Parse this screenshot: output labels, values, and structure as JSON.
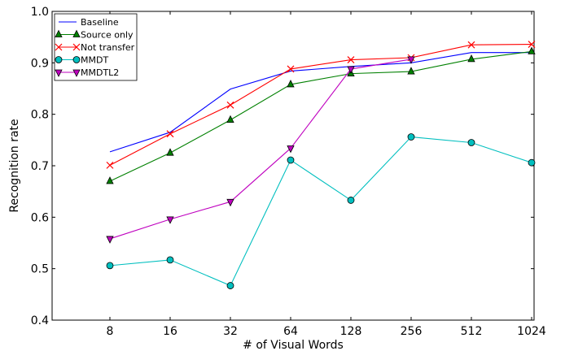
{
  "chart_data": {
    "type": "line",
    "xlabel": "# of Visual Words",
    "ylabel": "Recognition rate",
    "categories": [
      "8",
      "16",
      "32",
      "64",
      "128",
      "256",
      "512",
      "1024"
    ],
    "ylim": [
      0.4,
      1.0
    ],
    "yticks": [
      "0.4",
      "0.5",
      "0.6",
      "0.7",
      "0.8",
      "0.9",
      "1.0"
    ],
    "grid": false,
    "legend_position": "top-left",
    "series": [
      {
        "name": "Baseline",
        "color": "#0000ff",
        "marker": "none",
        "values": [
          0.727,
          0.765,
          0.849,
          0.884,
          0.893,
          0.9,
          0.92,
          0.92
        ]
      },
      {
        "name": "Source only",
        "color": "#008000",
        "marker": "triangle-up",
        "values": [
          0.67,
          0.725,
          0.789,
          0.858,
          0.879,
          0.883,
          0.907,
          0.922
        ]
      },
      {
        "name": "Not transfer",
        "color": "#ff0000",
        "marker": "x",
        "values": [
          0.701,
          0.762,
          0.818,
          0.888,
          0.906,
          0.91,
          0.935,
          0.936
        ]
      },
      {
        "name": "MMDT",
        "color": "#00bfbf",
        "marker": "circle",
        "values": [
          0.506,
          0.517,
          0.467,
          0.711,
          0.633,
          0.756,
          0.745,
          0.706
        ]
      },
      {
        "name": "MMDTL2",
        "color": "#bf00bf",
        "marker": "triangle-down",
        "values": [
          0.558,
          0.596,
          0.63,
          0.734,
          0.888,
          0.907,
          null,
          null
        ]
      }
    ]
  }
}
